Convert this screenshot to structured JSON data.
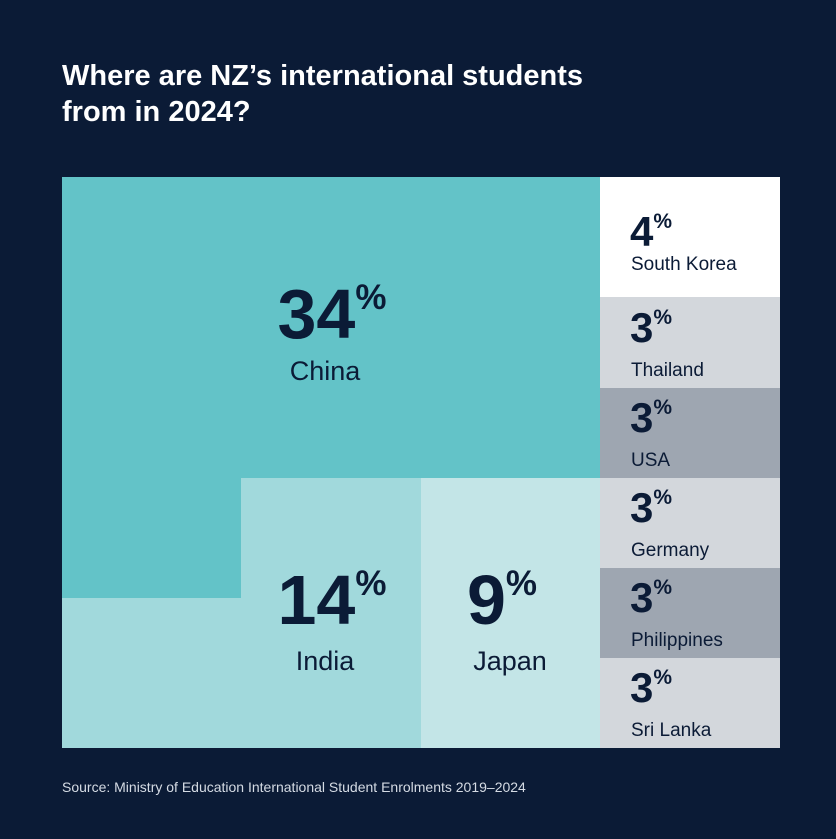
{
  "title_lines": [
    "Where are NZ’s international students",
    "from in 2024?"
  ],
  "source": "Source: Ministry of Education International Student Enrolments 2019–2024",
  "colors": {
    "background": "#0b1b36",
    "china": "#63c3c8",
    "india": "#a1d9dc",
    "japan": "#c3e5e7",
    "south_korea": "#ffffff",
    "thailand": "#d3d7dc",
    "usa": "#9ea6b1",
    "germany": "#d3d7dc",
    "philippines": "#9ea6b1",
    "sri_lanka": "#d3d7dc",
    "text": "#0b1b36"
  },
  "chart_data": {
    "type": "treemap",
    "unit": "%",
    "items": [
      {
        "name": "China",
        "value": 34,
        "label": "34%"
      },
      {
        "name": "India",
        "value": 14,
        "label": "14%"
      },
      {
        "name": "Japan",
        "value": 9,
        "label": "9%"
      },
      {
        "name": "South Korea",
        "value": 4,
        "label": "4%"
      },
      {
        "name": "Thailand",
        "value": 3,
        "label": "3%"
      },
      {
        "name": "USA",
        "value": 3,
        "label": "3%"
      },
      {
        "name": "Germany",
        "value": 3,
        "label": "3%"
      },
      {
        "name": "Philippines",
        "value": 3,
        "label": "3%"
      },
      {
        "name": "Sri Lanka",
        "value": 3,
        "label": "3%"
      }
    ]
  }
}
